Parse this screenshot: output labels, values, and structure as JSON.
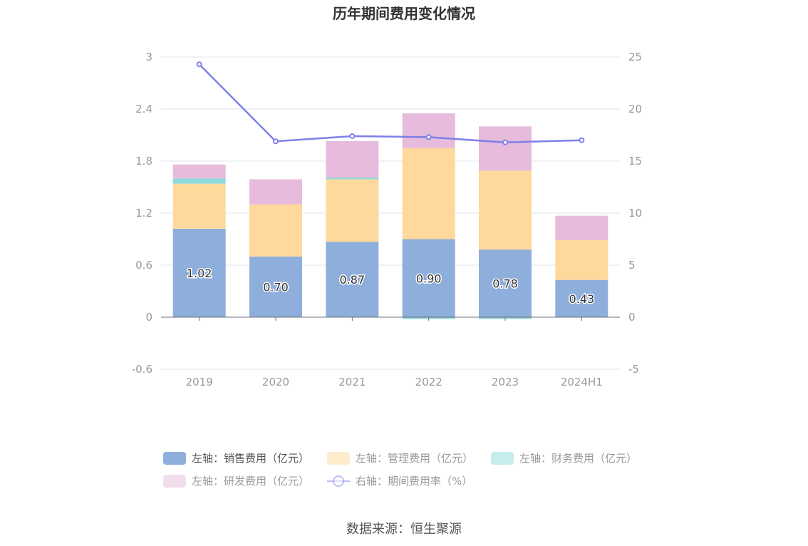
{
  "chart_data": {
    "type": "bar",
    "title": "历年期间费用变化情况",
    "categories": [
      "2019",
      "2020",
      "2021",
      "2022",
      "2023",
      "2024H1"
    ],
    "stacked": true,
    "left_axis": {
      "ylim": [
        -0.6,
        3
      ],
      "ticks": [
        "-0.6",
        "0",
        "0.6",
        "1.2",
        "1.8",
        "2.4",
        "3"
      ]
    },
    "right_axis": {
      "ylim": [
        -5,
        25
      ],
      "ticks": [
        "-5",
        "0",
        "5",
        "10",
        "15",
        "20",
        "25"
      ]
    },
    "series": [
      {
        "name": "左轴：销售费用（亿元）",
        "axis": "left",
        "type": "bar",
        "color": "#8eaedb",
        "values": [
          1.02,
          0.7,
          0.87,
          0.9,
          0.78,
          0.43
        ],
        "labels": [
          "1.02",
          "0.70",
          "0.87",
          "0.90",
          "0.78",
          "0.43"
        ]
      },
      {
        "name": "左轴：管理费用（亿元）",
        "axis": "left",
        "type": "bar",
        "color": "#fed99b",
        "values": [
          0.52,
          0.6,
          0.72,
          1.05,
          0.91,
          0.46
        ]
      },
      {
        "name": "左轴：财务费用（亿元）",
        "axis": "left",
        "type": "bar",
        "color": "#8dd9dc",
        "values": [
          0.06,
          0.0,
          0.02,
          -0.02,
          -0.02,
          0.0
        ]
      },
      {
        "name": "左轴：研发费用（亿元）",
        "axis": "left",
        "type": "bar",
        "color": "#e6bbdc",
        "values": [
          0.16,
          0.29,
          0.42,
          0.4,
          0.51,
          0.28
        ]
      },
      {
        "name": "右轴：期间费用率（%）",
        "axis": "right",
        "type": "line",
        "color": "#7f7fea",
        "values": [
          24.3,
          16.9,
          17.4,
          17.3,
          16.8,
          17.0
        ]
      }
    ],
    "legend_position": "bottom",
    "grid": true
  },
  "source": "数据来源：恒生聚源"
}
